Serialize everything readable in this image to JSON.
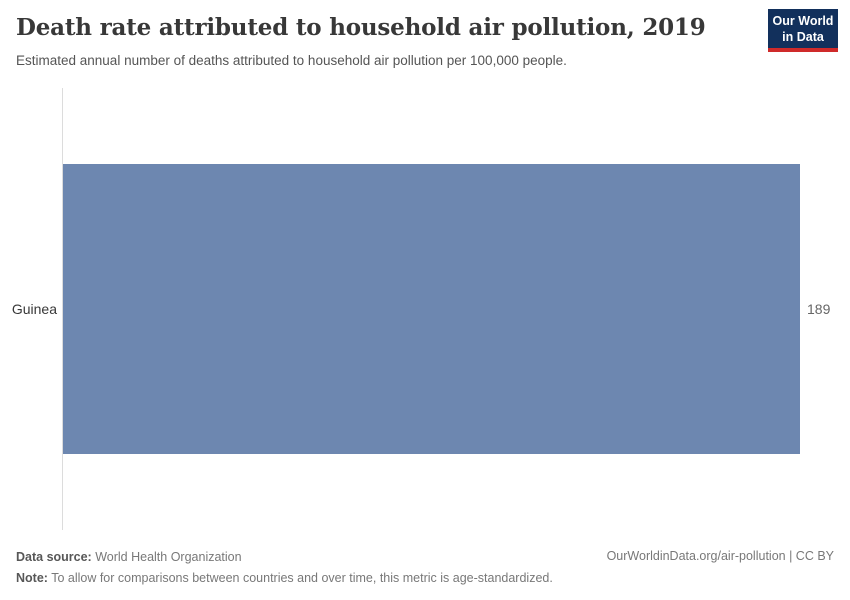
{
  "header": {
    "title": "Death rate attributed to household air pollution, 2019",
    "subtitle": "Estimated annual number of deaths attributed to household air pollution per 100,000 people.",
    "logo": {
      "line1": "Our World",
      "line2": "in Data"
    }
  },
  "chart_data": {
    "type": "bar",
    "orientation": "horizontal",
    "title": "Death rate attributed to household air pollution, 2019",
    "subtitle": "Estimated annual number of deaths attributed to household air pollution per 100,000 people.",
    "categories": [
      "Guinea"
    ],
    "values": [
      189
    ],
    "value_labels": [
      "189"
    ],
    "xlabel": "",
    "ylabel": "",
    "xlim": [
      0,
      189
    ],
    "grid": false,
    "legend": false,
    "bar_color": "#6d87b0",
    "axis_line_color": "#dcdcdc"
  },
  "footer": {
    "data_source_label": "Data source:",
    "data_source_value": " World Health Organization",
    "note_label": "Note:",
    "note_value": " To allow for comparisons between countries and over time, this metric is age-standardized.",
    "link": "OurWorldinData.org/air-pollution | CC BY"
  },
  "colors": {
    "bar": "#6d87b0",
    "logo_background": "#12305c",
    "logo_underline": "#cf2a2a",
    "title_text": "#383838",
    "subtitle_text": "#555555",
    "footer_text": "#787878"
  }
}
